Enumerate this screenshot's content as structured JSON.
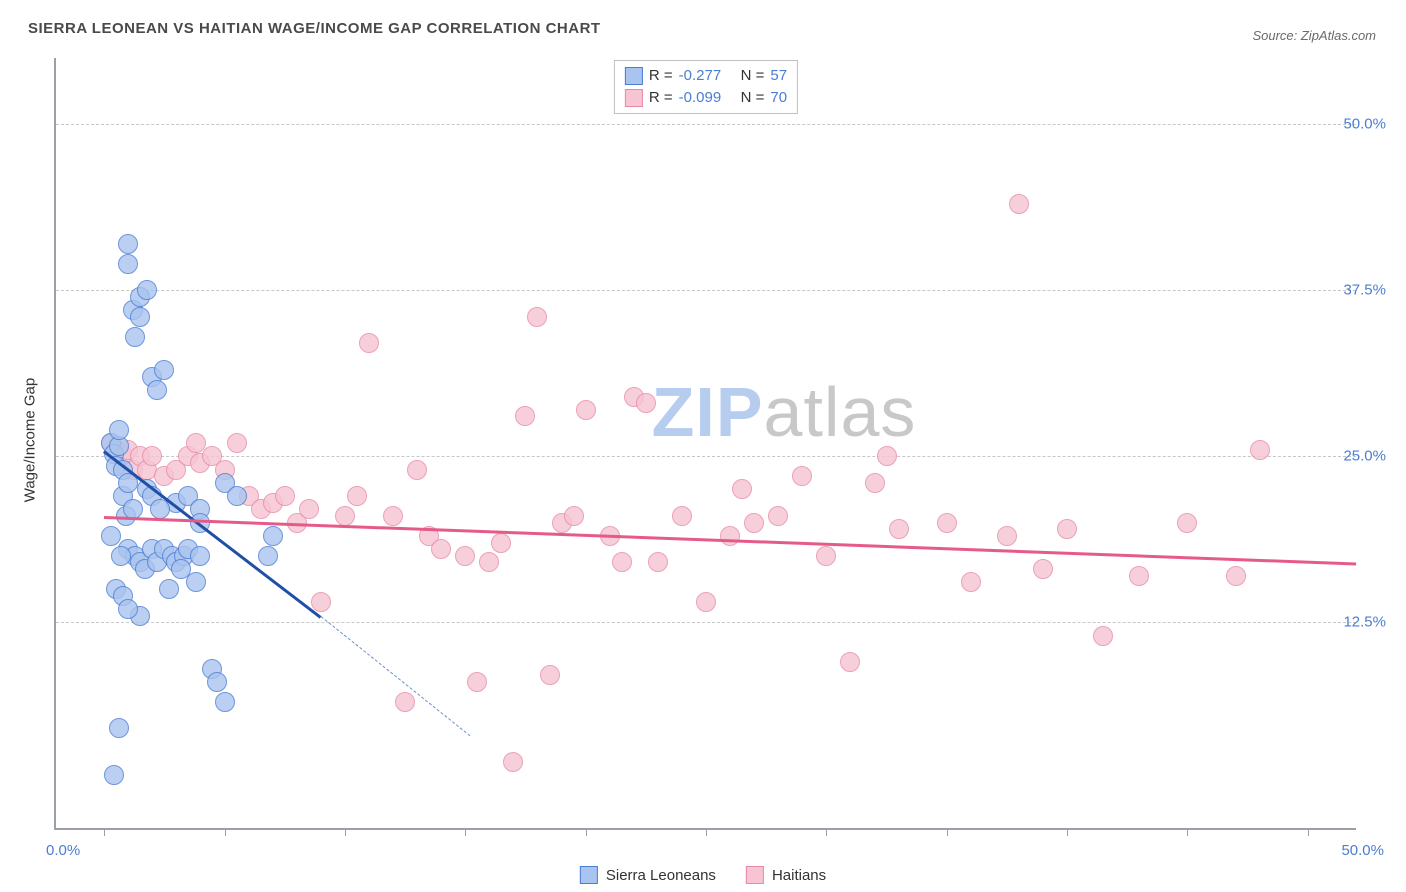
{
  "title": "SIERRA LEONEAN VS HAITIAN WAGE/INCOME GAP CORRELATION CHART",
  "source": "Source: ZipAtlas.com",
  "ylabel": "Wage/Income Gap",
  "watermark": {
    "text_zip": "ZIP",
    "text_atlas": "atlas",
    "color_zip": "#b7cdef",
    "color_atlas": "#c8c8c8"
  },
  "chart": {
    "type": "scatter",
    "background_color": "#ffffff",
    "grid_color": "#c7c7c7",
    "axis_color": "#9aa0a6",
    "marker_radius": 10,
    "marker_stroke_opacity": 0.85,
    "marker_fill_opacity": 0.25,
    "xlim": [
      -2,
      52
    ],
    "ylim": [
      -3,
      55
    ],
    "ygrid": [
      12.5,
      25.0,
      37.5,
      50.0
    ],
    "ytick_labels": [
      "12.5%",
      "25.0%",
      "37.5%",
      "50.0%"
    ],
    "xtick_positions": [
      0,
      5,
      10,
      15,
      20,
      25,
      30,
      35,
      40,
      45,
      50
    ],
    "x_origin_label": "0.0%",
    "x_end_label": "50.0%",
    "series": [
      {
        "name": "Sierra Leoneans",
        "color_stroke": "#4a7dd4",
        "color_fill": "#a9c4ee",
        "R": "-0.277",
        "N": "57",
        "trend": {
          "x1": 0,
          "y1": 25.5,
          "x2": 9,
          "y2": 13.0,
          "color": "#1f4fa8"
        },
        "trend_dash": {
          "x1": 9,
          "y1": 13.0,
          "x2": 15.2,
          "y2": 4.0,
          "color": "#6f8fc8"
        },
        "points": [
          [
            0.3,
            26.0
          ],
          [
            0.4,
            25.2
          ],
          [
            0.5,
            24.3
          ],
          [
            0.6,
            25.8
          ],
          [
            0.6,
            27.0
          ],
          [
            0.8,
            24.0
          ],
          [
            0.8,
            22.0
          ],
          [
            1.0,
            41.0
          ],
          [
            1.0,
            39.5
          ],
          [
            1.2,
            36.0
          ],
          [
            1.3,
            34.0
          ],
          [
            1.5,
            37.0
          ],
          [
            1.5,
            35.5
          ],
          [
            1.8,
            37.5
          ],
          [
            0.5,
            15.0
          ],
          [
            0.8,
            14.5
          ],
          [
            0.4,
            1.0
          ],
          [
            0.6,
            4.5
          ],
          [
            2.0,
            31.0
          ],
          [
            2.2,
            30.0
          ],
          [
            2.5,
            31.5
          ],
          [
            1.0,
            18.0
          ],
          [
            1.3,
            17.5
          ],
          [
            1.5,
            17.0
          ],
          [
            1.7,
            16.5
          ],
          [
            2.0,
            18.0
          ],
          [
            2.2,
            17.0
          ],
          [
            2.5,
            18.0
          ],
          [
            2.8,
            17.5
          ],
          [
            3.0,
            17.0
          ],
          [
            3.3,
            17.5
          ],
          [
            3.5,
            18.0
          ],
          [
            3.0,
            21.5
          ],
          [
            3.5,
            22.0
          ],
          [
            4.0,
            21.0
          ],
          [
            4.0,
            20.0
          ],
          [
            4.0,
            17.5
          ],
          [
            1.8,
            22.5
          ],
          [
            2.0,
            22.0
          ],
          [
            2.3,
            21.0
          ],
          [
            0.9,
            20.5
          ],
          [
            1.2,
            21.0
          ],
          [
            1.0,
            23.0
          ],
          [
            4.5,
            9.0
          ],
          [
            4.7,
            8.0
          ],
          [
            5.0,
            6.5
          ],
          [
            5.0,
            23.0
          ],
          [
            5.5,
            22.0
          ],
          [
            6.8,
            17.5
          ],
          [
            7.0,
            19.0
          ],
          [
            3.8,
            15.5
          ],
          [
            3.2,
            16.5
          ],
          [
            2.7,
            15.0
          ],
          [
            1.5,
            13.0
          ],
          [
            1.0,
            13.5
          ],
          [
            0.7,
            17.5
          ],
          [
            0.3,
            19.0
          ]
        ]
      },
      {
        "name": "Haitians",
        "color_stroke": "#e88aa7",
        "color_fill": "#f6c4d2",
        "R": "-0.099",
        "N": "70",
        "trend": {
          "x1": 0,
          "y1": 20.5,
          "x2": 52,
          "y2": 17.0,
          "color": "#e65a8a"
        },
        "points": [
          [
            0.3,
            26.0
          ],
          [
            0.5,
            25.5
          ],
          [
            0.8,
            25.0
          ],
          [
            1.0,
            25.5
          ],
          [
            1.2,
            24.0
          ],
          [
            1.5,
            25.0
          ],
          [
            1.8,
            24.0
          ],
          [
            2.0,
            25.0
          ],
          [
            2.5,
            23.5
          ],
          [
            3.0,
            24.0
          ],
          [
            3.5,
            25.0
          ],
          [
            3.8,
            26.0
          ],
          [
            4.0,
            24.5
          ],
          [
            4.5,
            25.0
          ],
          [
            5.0,
            24.0
          ],
          [
            5.5,
            26.0
          ],
          [
            6.0,
            22.0
          ],
          [
            6.5,
            21.0
          ],
          [
            7.0,
            21.5
          ],
          [
            7.5,
            22.0
          ],
          [
            8.0,
            20.0
          ],
          [
            8.5,
            21.0
          ],
          [
            9.0,
            14.0
          ],
          [
            10.0,
            20.5
          ],
          [
            10.5,
            22.0
          ],
          [
            11.0,
            33.5
          ],
          [
            12.0,
            20.5
          ],
          [
            12.5,
            6.5
          ],
          [
            13.0,
            24.0
          ],
          [
            13.5,
            19.0
          ],
          [
            14.0,
            18.0
          ],
          [
            15.0,
            17.5
          ],
          [
            15.5,
            8.0
          ],
          [
            16.0,
            17.0
          ],
          [
            16.5,
            18.5
          ],
          [
            17.0,
            2.0
          ],
          [
            17.5,
            28.0
          ],
          [
            18.0,
            35.5
          ],
          [
            18.5,
            8.5
          ],
          [
            19.0,
            20.0
          ],
          [
            19.5,
            20.5
          ],
          [
            20.0,
            28.5
          ],
          [
            21.0,
            19.0
          ],
          [
            21.5,
            17.0
          ],
          [
            22.0,
            29.5
          ],
          [
            22.5,
            29.0
          ],
          [
            23.0,
            17.0
          ],
          [
            24.0,
            20.5
          ],
          [
            25.0,
            14.0
          ],
          [
            26.0,
            19.0
          ],
          [
            26.5,
            22.5
          ],
          [
            27.0,
            20.0
          ],
          [
            28.0,
            20.5
          ],
          [
            29.0,
            23.5
          ],
          [
            30.0,
            17.5
          ],
          [
            31.0,
            9.5
          ],
          [
            32.0,
            23.0
          ],
          [
            32.5,
            25.0
          ],
          [
            33.0,
            19.5
          ],
          [
            35.0,
            20.0
          ],
          [
            36.0,
            15.5
          ],
          [
            37.5,
            19.0
          ],
          [
            38.0,
            44.0
          ],
          [
            39.0,
            16.5
          ],
          [
            40.0,
            19.5
          ],
          [
            41.5,
            11.5
          ],
          [
            43.0,
            16.0
          ],
          [
            45.0,
            20.0
          ],
          [
            47.0,
            16.0
          ],
          [
            48.0,
            25.5
          ]
        ]
      }
    ]
  }
}
